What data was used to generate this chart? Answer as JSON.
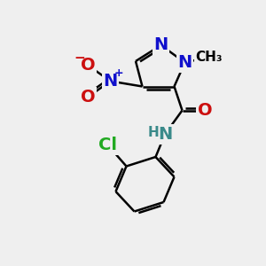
{
  "background_color": "#efefef",
  "atom_colors": {
    "C": "#000000",
    "N": "#1010cc",
    "O": "#cc1010",
    "H": "#3a8a8a",
    "Cl": "#22aa22",
    "plus": "#1010cc"
  },
  "bond_color": "#000000",
  "bond_width": 1.8,
  "font_size_atom": 14,
  "font_size_small": 11,
  "font_size_tiny": 9
}
